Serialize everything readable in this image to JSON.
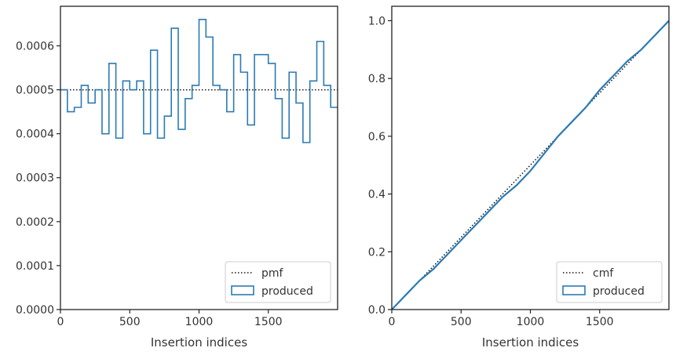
{
  "colors": {
    "produced": "#2b7bb4",
    "reference": "#111111",
    "axes": "#222222",
    "legend_border": "#cccccc"
  },
  "chart_data": [
    {
      "type": "line",
      "xlabel": "Insertion indices",
      "ylabel": "",
      "xlim": [
        0,
        2000
      ],
      "ylim": [
        0,
        0.00069
      ],
      "x_ticks": [
        0,
        500,
        1000,
        1500
      ],
      "x_tick_labels": [
        "0",
        "500",
        "1000",
        "1500"
      ],
      "y_ticks": [
        0,
        0.0001,
        0.0002,
        0.0003,
        0.0004,
        0.0005,
        0.0006
      ],
      "y_tick_labels": [
        "0.0000",
        "0.0001",
        "0.0002",
        "0.0003",
        "0.0004",
        "0.0005",
        "0.0006"
      ],
      "grid": false,
      "legend_position": "lower-right",
      "series": [
        {
          "name": "pmf",
          "style": "dotted",
          "x": [
            0,
            2000
          ],
          "y": [
            0.0005,
            0.0005
          ]
        },
        {
          "name": "produced",
          "style": "step",
          "bin_edges": [
            0,
            50,
            100,
            150,
            200,
            250,
            300,
            350,
            400,
            450,
            500,
            550,
            600,
            650,
            700,
            750,
            800,
            850,
            900,
            950,
            1000,
            1050,
            1100,
            1150,
            1200,
            1250,
            1300,
            1350,
            1400,
            1450,
            1500,
            1550,
            1600,
            1650,
            1700,
            1750,
            1800,
            1850,
            1900,
            1950,
            2000
          ],
          "values": [
            0.0005,
            0.00045,
            0.00046,
            0.00051,
            0.00047,
            0.0005,
            0.0004,
            0.00056,
            0.00039,
            0.00052,
            0.0005,
            0.00052,
            0.0004,
            0.00059,
            0.00039,
            0.00044,
            0.00064,
            0.00041,
            0.00048,
            0.00051,
            0.00066,
            0.00062,
            0.00051,
            0.0005,
            0.00045,
            0.00058,
            0.00054,
            0.00042,
            0.00058,
            0.00058,
            0.00056,
            0.00048,
            0.00039,
            0.00054,
            0.00047,
            0.00038,
            0.00052,
            0.00061,
            0.00051,
            0.00046
          ]
        }
      ]
    },
    {
      "type": "line",
      "xlabel": "Insertion indices",
      "ylabel": "",
      "xlim": [
        0,
        2000
      ],
      "ylim": [
        0,
        1.05
      ],
      "x_ticks": [
        0,
        500,
        1000,
        1500
      ],
      "x_tick_labels": [
        "0",
        "500",
        "1000",
        "1500"
      ],
      "y_ticks": [
        0,
        0.2,
        0.4,
        0.6,
        0.8,
        1.0
      ],
      "y_tick_labels": [
        "0.0",
        "0.2",
        "0.4",
        "0.6",
        "0.8",
        "1.0"
      ],
      "grid": false,
      "legend_position": "lower-right",
      "series": [
        {
          "name": "cmf",
          "style": "dotted",
          "x": [
            0,
            2000
          ],
          "y": [
            0,
            1.0
          ]
        },
        {
          "name": "produced",
          "style": "solid",
          "x": [
            0,
            100,
            200,
            300,
            400,
            500,
            600,
            700,
            800,
            900,
            1000,
            1100,
            1200,
            1300,
            1400,
            1500,
            1600,
            1700,
            1800,
            1900,
            2000
          ],
          "y": [
            0,
            0.05,
            0.1,
            0.14,
            0.19,
            0.24,
            0.29,
            0.34,
            0.39,
            0.43,
            0.48,
            0.54,
            0.6,
            0.65,
            0.7,
            0.76,
            0.81,
            0.86,
            0.9,
            0.95,
            1.0
          ]
        }
      ]
    }
  ]
}
